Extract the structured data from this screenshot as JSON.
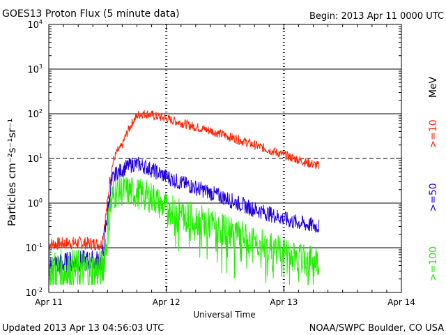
{
  "chart_data": {
    "type": "line",
    "title": "GOES13 Proton Flux (5 minute data)",
    "begin_label": "Begin: 2013 Apr 11 0000 UTC",
    "xlabel": "Universal Time",
    "ylabel": "Particles cm⁻²s⁻¹sr⁻¹",
    "footer_left": "Updated 2013 Apr 13 04:56:03 UTC",
    "footer_right": "NOAA/SWPC Boulder, CO USA",
    "x_ticks": [
      "Apr 11",
      "Apr 12",
      "Apr 13",
      "Apr 14"
    ],
    "xlim_days": [
      0,
      3
    ],
    "y_scale": "log",
    "ylim": [
      0.01,
      10000
    ],
    "y_ticks": [
      {
        "base": "10",
        "exp": "-2"
      },
      {
        "base": "10",
        "exp": "-1"
      },
      {
        "base": "10",
        "exp": "0"
      },
      {
        "base": "10",
        "exp": "1"
      },
      {
        "base": "10",
        "exp": "2"
      },
      {
        "base": "10",
        "exp": "3"
      },
      {
        "base": "10",
        "exp": "4"
      }
    ],
    "threshold_line": 10,
    "unit_label": "MeV",
    "series": [
      {
        "name": ">=10",
        "color": "#ff2200",
        "x_days": [
          0.0,
          0.25,
          0.45,
          0.5,
          0.52,
          0.55,
          0.58,
          0.62,
          0.65,
          0.68,
          0.72,
          0.76,
          0.8,
          0.85,
          0.9,
          1.0,
          1.2,
          1.4,
          1.6,
          1.8,
          2.0,
          2.2,
          2.3
        ],
        "values": [
          0.12,
          0.13,
          0.12,
          1.0,
          3.5,
          9.0,
          14.0,
          18.0,
          30.0,
          45.0,
          70.0,
          95.0,
          100.0,
          98.0,
          90.0,
          78.0,
          55.0,
          40.0,
          27.0,
          18.0,
          12.0,
          8.0,
          6.8
        ],
        "noise": 0.035
      },
      {
        "name": ">=50",
        "color": "#2200dd",
        "x_days": [
          0.0,
          0.25,
          0.45,
          0.5,
          0.53,
          0.57,
          0.62,
          0.68,
          0.72,
          0.78,
          0.85,
          0.95,
          1.1,
          1.3,
          1.5,
          1.7,
          1.9,
          2.05,
          2.2,
          2.3
        ],
        "values": [
          0.04,
          0.05,
          0.05,
          0.6,
          2.5,
          4.5,
          5.5,
          6.8,
          7.5,
          7.2,
          6.0,
          4.5,
          3.0,
          2.0,
          1.3,
          0.8,
          0.55,
          0.4,
          0.33,
          0.3
        ],
        "noise": 0.06
      },
      {
        "name": ">=100",
        "color": "#22ee00",
        "x_days": [
          0.0,
          0.25,
          0.45,
          0.5,
          0.53,
          0.57,
          0.62,
          0.7,
          0.8,
          0.9,
          0.95,
          1.1,
          1.3,
          1.5,
          1.7,
          1.9,
          2.05,
          2.2,
          2.3
        ],
        "values": [
          0.03,
          0.03,
          0.03,
          0.2,
          1.0,
          1.8,
          1.9,
          1.8,
          1.5,
          1.3,
          0.9,
          0.6,
          0.4,
          0.25,
          0.15,
          0.1,
          0.07,
          0.05,
          0.05
        ],
        "noise": 0.12
      }
    ]
  }
}
